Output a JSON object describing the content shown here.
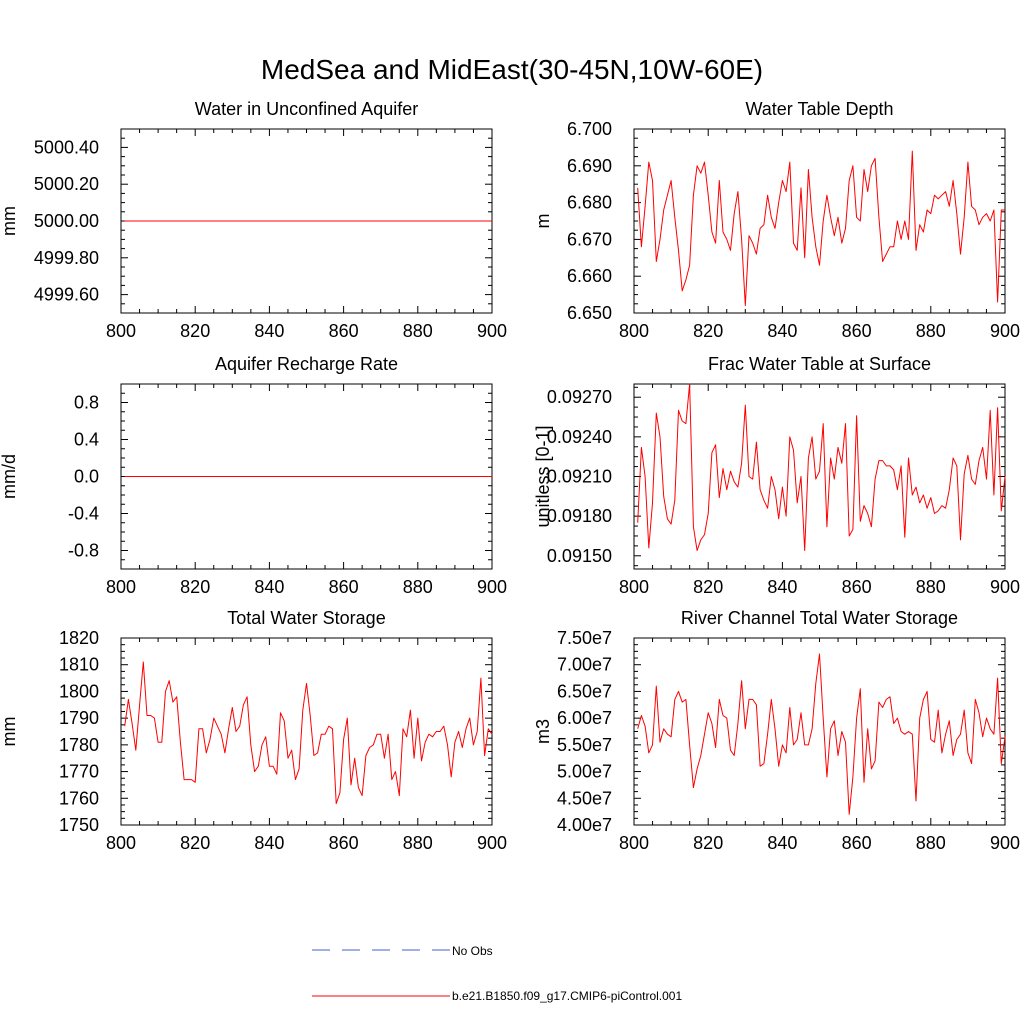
{
  "figure_title": "MedSea and MidEast(30-45N,10W-60E)",
  "colors": {
    "series": "#ff0000",
    "obs": "#6b7fd6",
    "axis": "#000000"
  },
  "legend": {
    "entries": [
      {
        "label": "No Obs",
        "style": "dashed"
      },
      {
        "label": "b.e21.B1850.f09_g17.CMIP6-piControl.001",
        "style": "solid"
      }
    ]
  },
  "chart_data": [
    {
      "type": "line",
      "title": "Water in Unconfined Aquifer",
      "ylabel": "mm",
      "xlim": [
        800,
        900
      ],
      "ylim": [
        4999.5,
        5000.5
      ],
      "xticks": [
        800,
        820,
        840,
        860,
        880,
        900
      ],
      "xtick_labels": [
        "800",
        "820",
        "840",
        "860",
        "880",
        "900"
      ],
      "yticks": [
        4999.6,
        4999.8,
        5000.0,
        5000.2,
        5000.4
      ],
      "ytick_labels": [
        "4999.60",
        "4999.80",
        "5000.00",
        "5000.20",
        "5000.40"
      ],
      "x": [
        801,
        900
      ],
      "series": [
        {
          "name": "b.e21.B1850.f09_g17.CMIP6-piControl.001",
          "values": [
            5000.0,
            5000.0
          ]
        }
      ]
    },
    {
      "type": "line",
      "title": "Water Table Depth",
      "ylabel": "m",
      "xlim": [
        800,
        900
      ],
      "ylim": [
        6.65,
        6.7
      ],
      "xticks": [
        800,
        820,
        840,
        860,
        880,
        900
      ],
      "xtick_labels": [
        "800",
        "820",
        "840",
        "860",
        "880",
        "900"
      ],
      "yticks": [
        6.65,
        6.66,
        6.67,
        6.68,
        6.69,
        6.7
      ],
      "ytick_labels": [
        "6.650",
        "6.660",
        "6.670",
        "6.680",
        "6.690",
        "6.700"
      ],
      "x_start": 801,
      "series": [
        {
          "name": "b.e21.B1850.f09_g17.CMIP6-piControl.001",
          "values": [
            6.684,
            6.668,
            6.679,
            6.691,
            6.686,
            6.664,
            6.67,
            6.678,
            6.682,
            6.686,
            6.676,
            6.667,
            6.656,
            6.659,
            6.663,
            6.682,
            6.69,
            6.688,
            6.691,
            6.682,
            6.672,
            6.669,
            6.686,
            6.672,
            6.67,
            6.667,
            6.677,
            6.683,
            6.67,
            6.652,
            6.671,
            6.669,
            6.666,
            6.673,
            6.674,
            6.682,
            6.676,
            6.673,
            6.68,
            6.686,
            6.683,
            6.691,
            6.669,
            6.667,
            6.684,
            6.665,
            6.689,
            6.676,
            6.668,
            6.663,
            6.675,
            6.682,
            6.676,
            6.671,
            6.676,
            6.669,
            6.673,
            6.686,
            6.69,
            6.676,
            6.675,
            6.689,
            6.683,
            6.69,
            6.692,
            6.676,
            6.664,
            6.666,
            6.668,
            6.668,
            6.675,
            6.67,
            6.675,
            6.67,
            6.694,
            6.667,
            6.674,
            6.672,
            6.678,
            6.677,
            6.682,
            6.681,
            6.682,
            6.683,
            6.679,
            6.686,
            6.677,
            6.666,
            6.676,
            6.691,
            6.679,
            6.678,
            6.674,
            6.676,
            6.677,
            6.675,
            6.678,
            6.653,
            6.678,
            6.678
          ]
        }
      ]
    },
    {
      "type": "line",
      "title": "Aquifer Recharge Rate",
      "ylabel": "mm/d",
      "xlim": [
        800,
        900
      ],
      "ylim": [
        -1.0,
        1.0
      ],
      "xticks": [
        800,
        820,
        840,
        860,
        880,
        900
      ],
      "xtick_labels": [
        "800",
        "820",
        "840",
        "860",
        "880",
        "900"
      ],
      "yticks": [
        -0.8,
        -0.4,
        0.0,
        0.4,
        0.8
      ],
      "ytick_labels": [
        "-0.8",
        "-0.4",
        "0.0",
        "0.4",
        "0.8"
      ],
      "x": [
        801,
        900
      ],
      "series": [
        {
          "name": "b.e21.B1850.f09_g17.CMIP6-piControl.001",
          "values": [
            0.0,
            0.0
          ]
        }
      ]
    },
    {
      "type": "line",
      "title": "Frac Water Table at Surface",
      "ylabel": "unitless [0-1]",
      "xlim": [
        800,
        900
      ],
      "ylim": [
        0.0914,
        0.0928
      ],
      "xticks": [
        800,
        820,
        840,
        860,
        880,
        900
      ],
      "xtick_labels": [
        "800",
        "820",
        "840",
        "860",
        "880",
        "900"
      ],
      "yticks": [
        0.0915,
        0.0918,
        0.0921,
        0.0924,
        0.0927
      ],
      "ytick_labels": [
        "0.09150",
        "0.09180",
        "0.09210",
        "0.09240",
        "0.09270"
      ],
      "x_start": 801,
      "series": [
        {
          "name": "b.e21.B1850.f09_g17.CMIP6-piControl.001",
          "values": [
            0.09175,
            0.09232,
            0.0921,
            0.09156,
            0.0919,
            0.09258,
            0.0924,
            0.09195,
            0.09178,
            0.09174,
            0.09192,
            0.0926,
            0.09252,
            0.0925,
            0.0928,
            0.09172,
            0.09154,
            0.09162,
            0.09166,
            0.09182,
            0.09228,
            0.09234,
            0.09194,
            0.09216,
            0.092,
            0.09214,
            0.09206,
            0.09202,
            0.0922,
            0.09264,
            0.0921,
            0.09208,
            0.09236,
            0.092,
            0.09192,
            0.09186,
            0.0921,
            0.092,
            0.09178,
            0.09202,
            0.0918,
            0.0924,
            0.0923,
            0.0919,
            0.0921,
            0.09154,
            0.09224,
            0.0924,
            0.09208,
            0.09214,
            0.0925,
            0.09172,
            0.09224,
            0.09208,
            0.09232,
            0.0922,
            0.0925,
            0.09165,
            0.0917,
            0.09256,
            0.09176,
            0.09188,
            0.09182,
            0.09172,
            0.09208,
            0.09222,
            0.09222,
            0.09218,
            0.09218,
            0.09215,
            0.092,
            0.09218,
            0.09164,
            0.09224,
            0.09196,
            0.09202,
            0.0919,
            0.09196,
            0.09186,
            0.09194,
            0.09182,
            0.09184,
            0.09188,
            0.09186,
            0.092,
            0.09224,
            0.09218,
            0.09162,
            0.09212,
            0.09226,
            0.09208,
            0.09204,
            0.09222,
            0.09232,
            0.09208,
            0.0926,
            0.09196,
            0.09262,
            0.09184,
            0.0921
          ]
        }
      ]
    },
    {
      "type": "line",
      "title": "Total Water Storage",
      "ylabel": "mm",
      "xlim": [
        800,
        900
      ],
      "ylim": [
        1750,
        1820
      ],
      "xticks": [
        800,
        820,
        840,
        860,
        880,
        900
      ],
      "xtick_labels": [
        "800",
        "820",
        "840",
        "860",
        "880",
        "900"
      ],
      "yticks": [
        1750,
        1760,
        1770,
        1780,
        1790,
        1800,
        1810,
        1820
      ],
      "ytick_labels": [
        "1750",
        "1760",
        "1770",
        "1780",
        "1790",
        "1800",
        "1810",
        "1820"
      ],
      "x_start": 801,
      "series": [
        {
          "name": "b.e21.B1850.f09_g17.CMIP6-piControl.001",
          "values": [
            1787,
            1797,
            1788,
            1778,
            1795,
            1811,
            1791,
            1791,
            1790,
            1781,
            1781,
            1800,
            1804,
            1796,
            1798,
            1781,
            1767,
            1767,
            1767,
            1766,
            1786,
            1786,
            1777,
            1782,
            1790,
            1787,
            1784,
            1777,
            1786,
            1794,
            1785,
            1787,
            1795,
            1798,
            1780,
            1770,
            1772,
            1780,
            1783,
            1772,
            1772,
            1769,
            1792,
            1789,
            1775,
            1778,
            1767,
            1771,
            1793,
            1803,
            1791,
            1776,
            1777,
            1784,
            1784,
            1787,
            1786,
            1758,
            1762,
            1782,
            1790,
            1765,
            1775,
            1764,
            1761,
            1776,
            1779,
            1780,
            1784,
            1784,
            1775,
            1784,
            1767,
            1770,
            1761,
            1786,
            1783,
            1793,
            1775,
            1790,
            1774,
            1781,
            1784,
            1783,
            1785,
            1785,
            1787,
            1780,
            1768,
            1781,
            1785,
            1779,
            1786,
            1790,
            1780,
            1785,
            1805,
            1776,
            1786,
            1784
          ]
        }
      ]
    },
    {
      "type": "line",
      "title": "River Channel Total Water Storage",
      "ylabel": "m3",
      "xlim": [
        800,
        900
      ],
      "ylim": [
        40000000.0,
        75000000.0
      ],
      "xticks": [
        800,
        820,
        840,
        860,
        880,
        900
      ],
      "xtick_labels": [
        "800",
        "820",
        "840",
        "860",
        "880",
        "900"
      ],
      "yticks": [
        40000000.0,
        45000000.0,
        50000000.0,
        55000000.0,
        60000000.0,
        65000000.0,
        70000000.0,
        75000000.0
      ],
      "ytick_labels": [
        "4.00e7",
        "4.50e7",
        "5.00e7",
        "5.50e7",
        "6.00e7",
        "6.50e7",
        "7.00e7",
        "7.50e7"
      ],
      "x_start": 801,
      "series": [
        {
          "name": "b.e21.B1850.f09_g17.CMIP6-piControl.001",
          "values": [
            58000000.0,
            60500000.0,
            58500000.0,
            53500000.0,
            55000000.0,
            66000000.0,
            55500000.0,
            58000000.0,
            57000000.0,
            56500000.0,
            63500000.0,
            65000000.0,
            63000000.0,
            63500000.0,
            55000000.0,
            47000000.0,
            50500000.0,
            53000000.0,
            57000000.0,
            61000000.0,
            59000000.0,
            54500000.0,
            63500000.0,
            60500000.0,
            60000000.0,
            54000000.0,
            53000000.0,
            59000000.0,
            67000000.0,
            58000000.0,
            63500000.0,
            63500000.0,
            62500000.0,
            51000000.0,
            51500000.0,
            57000000.0,
            63500000.0,
            58000000.0,
            51000000.0,
            55000000.0,
            53500000.0,
            62000000.0,
            55000000.0,
            56000000.0,
            61000000.0,
            55000000.0,
            55000000.0,
            58000000.0,
            66500000.0,
            72000000.0,
            60000000.0,
            49000000.0,
            58000000.0,
            59500000.0,
            53000000.0,
            57500000.0,
            55500000.0,
            42000000.0,
            49000000.0,
            60000000.0,
            65500000.0,
            48000000.0,
            58000000.0,
            50500000.0,
            52000000.0,
            63000000.0,
            62000000.0,
            63500000.0,
            64000000.0,
            59000000.0,
            60000000.0,
            57500000.0,
            57000000.0,
            57500000.0,
            57000000.0,
            44500000.0,
            60000000.0,
            63500000.0,
            65000000.0,
            56000000.0,
            55500000.0,
            61500000.0,
            53500000.0,
            57000000.0,
            59500000.0,
            53000000.0,
            56000000.0,
            57000000.0,
            61500000.0,
            53500000.0,
            51500000.0,
            63500000.0,
            61000000.0,
            56500000.0,
            60000000.0,
            58000000.0,
            57000000.0,
            67500000.0,
            51500000.0,
            56500000.0
          ]
        }
      ]
    }
  ]
}
